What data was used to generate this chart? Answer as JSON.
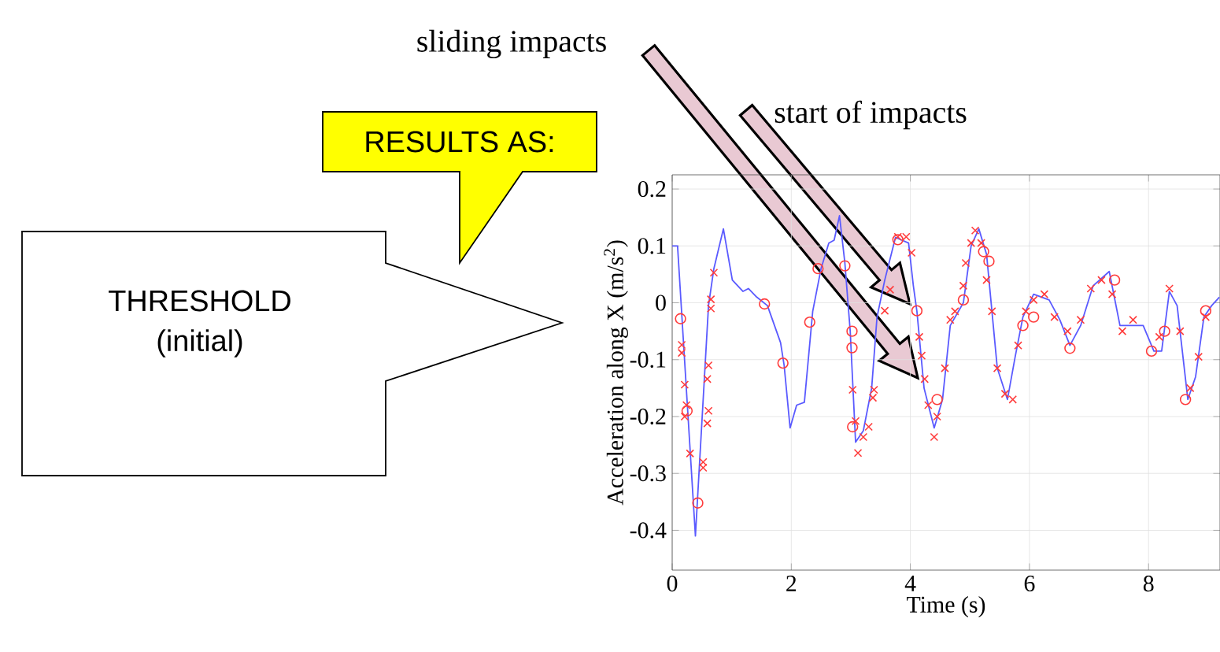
{
  "chart_data": {
    "type": "line",
    "xlabel": "Time (s)",
    "ylabel": "Acceleration along X (m/s$^{2}$)",
    "xlim": [
      0,
      9.2
    ],
    "ylim": [
      -0.47,
      0.225
    ],
    "xticks": [
      0,
      2,
      4,
      6,
      8
    ],
    "yticks": [
      -0.4,
      -0.3,
      -0.2,
      -0.1,
      0,
      0.1,
      0.2
    ],
    "grid": true,
    "series": [
      {
        "color": "#5a5aff",
        "marker": "none",
        "x": [
          0,
          0.09,
          0.39,
          0.61,
          0.7,
          0.86,
          1.01,
          1.19,
          1.28,
          1.42,
          1.6,
          1.82,
          1.88,
          1.98,
          2.09,
          2.22,
          2.36,
          2.5,
          2.63,
          2.72,
          2.81,
          2.9,
          2.99,
          3.08,
          3.21,
          3.35,
          3.44,
          3.57,
          3.75,
          3.97,
          4.05,
          4.11,
          4.23,
          4.4,
          4.54,
          4.67,
          4.89,
          5.02,
          5.15,
          5.28,
          5.46,
          5.63,
          5.76,
          5.89,
          6.07,
          6.33,
          6.51,
          6.68,
          6.86,
          7.07,
          7.34,
          7.52,
          7.74,
          7.91,
          8.09,
          8.22,
          8.35,
          8.48,
          8.66,
          8.79,
          8.93,
          9.06,
          9.19
        ],
        "values": [
          0.1,
          0.1,
          -0.41,
          -0.005,
          0.06,
          0.13,
          0.04,
          0.02,
          0.025,
          0.01,
          -0.005,
          -0.07,
          -0.11,
          -0.22,
          -0.18,
          -0.175,
          -0.015,
          0.06,
          0.105,
          0.11,
          0.153,
          0.07,
          -0.05,
          -0.245,
          -0.225,
          -0.15,
          -0.025,
          0.04,
          0.115,
          0.105,
          0.03,
          -0.015,
          -0.15,
          -0.22,
          -0.17,
          -0.04,
          0,
          0.1,
          0.13,
          0.085,
          -0.115,
          -0.17,
          -0.095,
          -0.025,
          0.015,
          0.005,
          -0.03,
          -0.075,
          -0.04,
          0.03,
          0.055,
          -0.04,
          -0.04,
          -0.04,
          -0.085,
          -0.085,
          0.02,
          -0.005,
          -0.17,
          -0.13,
          -0.025,
          -0.005,
          0.01
        ]
      },
      {
        "type": "scatter",
        "color": "#ff3b3b",
        "marker": "cross",
        "x": [
          0.16,
          0.16,
          0.21,
          0.24,
          0.21,
          0.3,
          0.52,
          0.52,
          0.59,
          0.61,
          0.59,
          0.61,
          0.65,
          0.65,
          0.7,
          3.03,
          3.08,
          3.12,
          3.21,
          3.3,
          3.37,
          3.39,
          3.57,
          3.66,
          3.79,
          3.93,
          4.02,
          4.15,
          4.19,
          4.24,
          4.3,
          4.4,
          4.45,
          4.58,
          4.67,
          4.75,
          4.89,
          4.93,
          5.02,
          5.09,
          5.19,
          5.28,
          5.37,
          5.46,
          5.59,
          5.72,
          5.81,
          5.94,
          6.07,
          6.25,
          6.42,
          6.64,
          6.86,
          7.03,
          7.21,
          7.39,
          7.56,
          7.74,
          8.18,
          8.35,
          8.53,
          8.7,
          8.84,
          8.96
        ],
        "values": [
          -0.088,
          -0.074,
          -0.144,
          -0.18,
          -0.2,
          -0.265,
          -0.28,
          -0.29,
          -0.212,
          -0.19,
          -0.134,
          -0.11,
          -0.01,
          0.006,
          0.053,
          -0.153,
          -0.208,
          -0.264,
          -0.236,
          -0.218,
          -0.167,
          -0.153,
          -0.014,
          0.023,
          0.116,
          0.116,
          0.088,
          -0.06,
          -0.093,
          -0.134,
          -0.18,
          -0.236,
          -0.2,
          -0.115,
          -0.03,
          -0.015,
          0.03,
          0.07,
          0.105,
          0.127,
          0.105,
          0.04,
          -0.015,
          -0.115,
          -0.16,
          -0.17,
          -0.075,
          -0.015,
          0.005,
          0.015,
          -0.025,
          -0.05,
          -0.03,
          0.025,
          0.04,
          0.015,
          -0.05,
          -0.03,
          -0.06,
          0.025,
          -0.05,
          -0.15,
          -0.095,
          -0.025
        ]
      },
      {
        "type": "scatter",
        "color": "#ff3b3b",
        "marker": "circle",
        "x": [
          0.14,
          0.25,
          0.43,
          1.55,
          1.86,
          2.31,
          2.45,
          2.9,
          3.02,
          3.02,
          3.03,
          3.79,
          4.11,
          4.45,
          4.89,
          5.23,
          5.32,
          5.89,
          6.07,
          6.68,
          7.43,
          8.05,
          8.27,
          8.62,
          8.96
        ],
        "values": [
          -0.028,
          -0.19,
          -0.352,
          -0.002,
          -0.106,
          -0.034,
          0.06,
          0.065,
          -0.05,
          -0.079,
          -0.218,
          0.111,
          -0.014,
          -0.17,
          0.005,
          0.09,
          0.073,
          -0.04,
          -0.025,
          -0.08,
          0.04,
          -0.085,
          -0.05,
          -0.17,
          -0.014
        ]
      }
    ],
    "annotations": [
      "sliding impacts",
      "start of impacts",
      "RESULTS AS:",
      "THRESHOLD",
      "(initial)"
    ]
  }
}
